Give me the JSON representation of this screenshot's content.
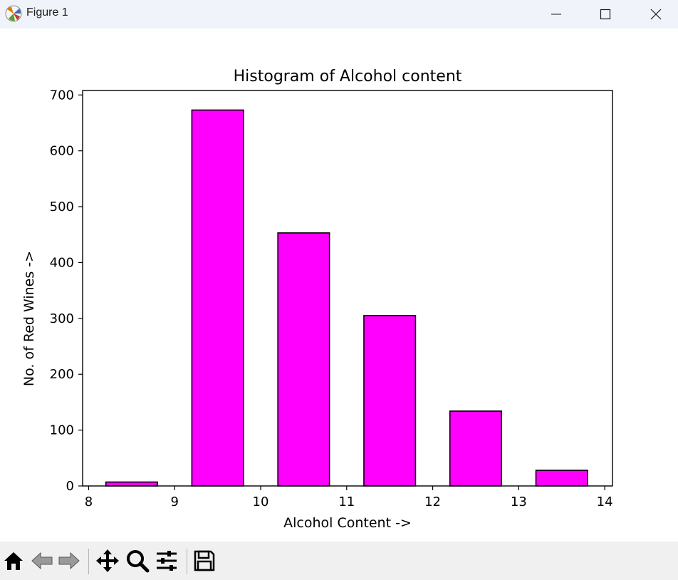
{
  "window": {
    "title": "Figure 1"
  },
  "toolbar": {
    "icons": [
      "home-icon",
      "back-icon",
      "forward-icon",
      "pan-icon",
      "zoom-icon",
      "configure-subplots-icon",
      "save-icon"
    ]
  },
  "chart_data": {
    "type": "bar",
    "title": "Histogram of Alcohol content",
    "xlabel": "Alcohol Content ->",
    "ylabel": "No. of Red Wines ->",
    "x_centers": [
      8.5,
      9.5,
      10.5,
      11.5,
      12.5,
      13.5
    ],
    "bar_width": 0.6,
    "values": [
      7,
      673,
      453,
      305,
      134,
      28
    ],
    "xlim": [
      7.93,
      14.09
    ],
    "ylim": [
      0,
      708
    ],
    "xticks": [
      8,
      9,
      10,
      11,
      12,
      13,
      14
    ],
    "yticks": [
      0,
      100,
      200,
      300,
      400,
      500,
      600,
      700
    ],
    "bar_color": "#ff00ff",
    "edge_color": "#000000",
    "grid": false
  }
}
